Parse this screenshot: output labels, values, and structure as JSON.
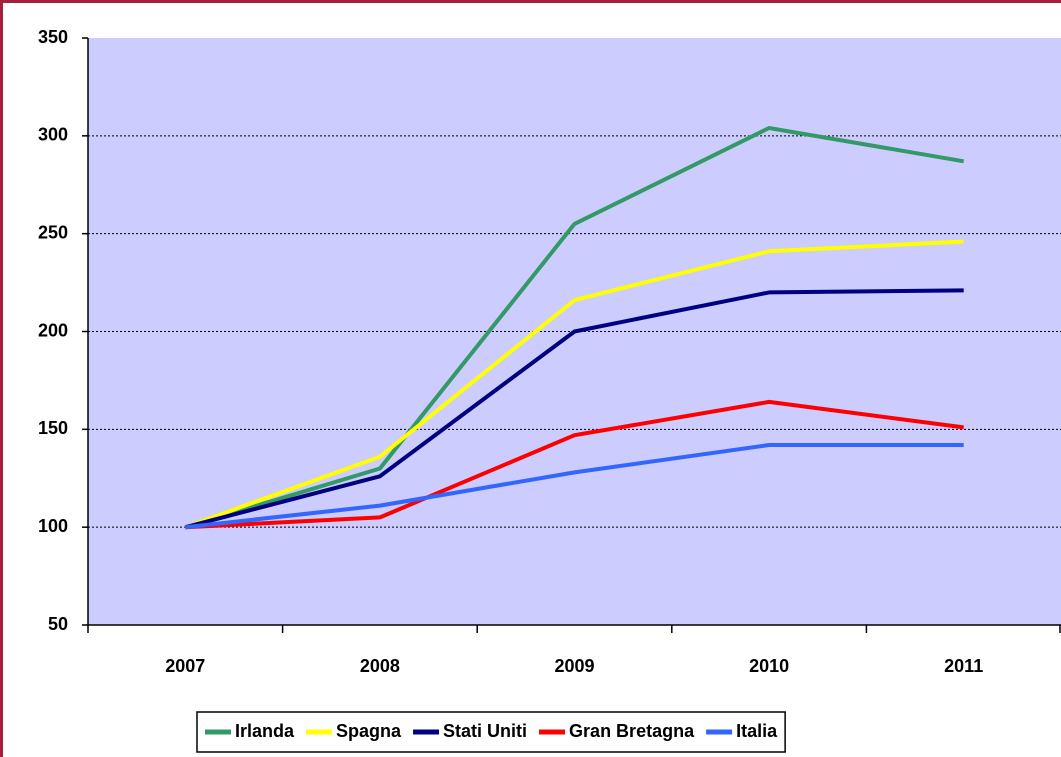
{
  "chart_data": {
    "type": "line",
    "categories": [
      "2007",
      "2008",
      "2009",
      "2010",
      "2011"
    ],
    "series": [
      {
        "name": "Irlanda",
        "color": "#339966",
        "values": [
          100,
          130,
          255,
          304,
          287
        ]
      },
      {
        "name": "Spagna",
        "color": "#ffff00",
        "values": [
          100,
          136,
          216,
          241,
          246
        ]
      },
      {
        "name": "Stati Uniti",
        "color": "#000080",
        "values": [
          100,
          126,
          200,
          220,
          221
        ]
      },
      {
        "name": "Gran Bretagna",
        "color": "#ff0000",
        "values": [
          100,
          105,
          147,
          164,
          151
        ]
      },
      {
        "name": "Italia",
        "color": "#3366ff",
        "values": [
          100,
          111,
          128,
          142,
          142
        ]
      }
    ],
    "ylim": [
      50,
      350
    ],
    "yticks": [
      50,
      100,
      150,
      200,
      250,
      300,
      350
    ],
    "grid": true,
    "legend": "bottom"
  }
}
